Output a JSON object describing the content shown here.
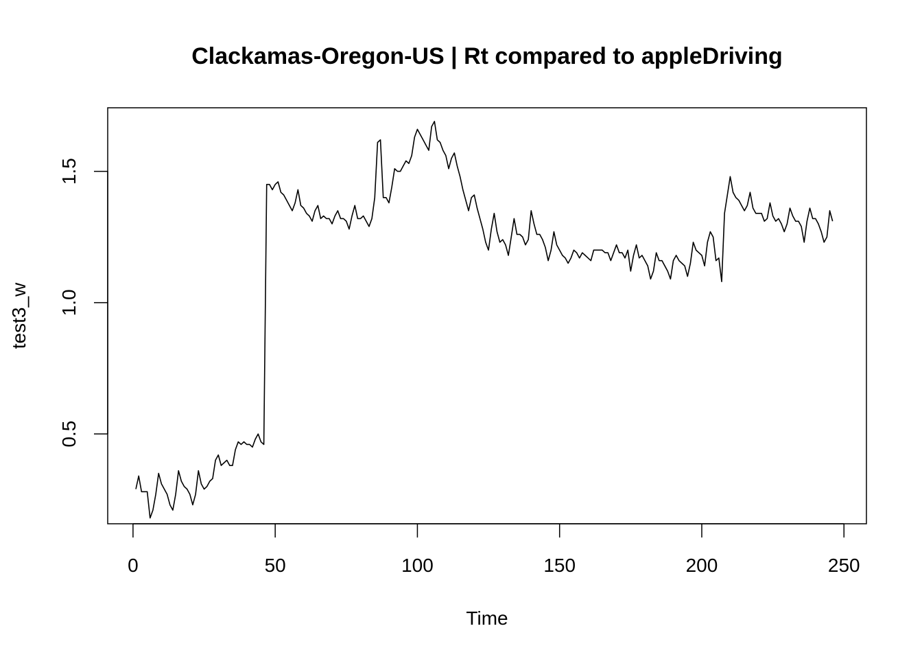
{
  "chart_data": {
    "type": "line",
    "title": "Clackamas-Oregon-US | Rt compared to appleDriving",
    "xlabel": "Time",
    "ylabel": "test3_w",
    "xlim": [
      -8.9,
      257.9
    ],
    "ylim": [
      0.158,
      1.742
    ],
    "x_ticks": [
      0,
      50,
      100,
      150,
      200,
      250
    ],
    "x_tick_labels": [
      "0",
      "50",
      "100",
      "150",
      "200",
      "250"
    ],
    "y_ticks": [
      0.5,
      1.0,
      1.5
    ],
    "y_tick_labels": [
      "0.5",
      "1.0",
      "1.5"
    ],
    "grid": false,
    "legend": "none",
    "colors": {
      "line": "#000000",
      "frame": "#000000",
      "background": "#ffffff"
    },
    "series": [
      {
        "x_start": 1,
        "x_step": 1,
        "values": [
          0.29,
          0.34,
          0.28,
          0.28,
          0.28,
          0.18,
          0.21,
          0.27,
          0.35,
          0.31,
          0.29,
          0.27,
          0.23,
          0.21,
          0.27,
          0.36,
          0.32,
          0.3,
          0.29,
          0.27,
          0.23,
          0.27,
          0.36,
          0.31,
          0.29,
          0.3,
          0.32,
          0.33,
          0.4,
          0.42,
          0.38,
          0.39,
          0.4,
          0.38,
          0.38,
          0.44,
          0.47,
          0.46,
          0.47,
          0.46,
          0.46,
          0.45,
          0.48,
          0.5,
          0.47,
          0.46,
          1.45,
          1.45,
          1.43,
          1.45,
          1.46,
          1.42,
          1.41,
          1.39,
          1.37,
          1.35,
          1.38,
          1.43,
          1.37,
          1.36,
          1.34,
          1.33,
          1.31,
          1.35,
          1.37,
          1.32,
          1.33,
          1.32,
          1.32,
          1.3,
          1.33,
          1.35,
          1.32,
          1.32,
          1.31,
          1.28,
          1.33,
          1.37,
          1.32,
          1.32,
          1.33,
          1.31,
          1.29,
          1.32,
          1.4,
          1.61,
          1.62,
          1.4,
          1.4,
          1.38,
          1.44,
          1.51,
          1.5,
          1.5,
          1.52,
          1.54,
          1.53,
          1.56,
          1.63,
          1.66,
          1.64,
          1.62,
          1.6,
          1.58,
          1.67,
          1.69,
          1.62,
          1.61,
          1.58,
          1.56,
          1.51,
          1.55,
          1.57,
          1.52,
          1.48,
          1.43,
          1.39,
          1.35,
          1.4,
          1.41,
          1.36,
          1.32,
          1.28,
          1.23,
          1.2,
          1.28,
          1.34,
          1.27,
          1.23,
          1.24,
          1.22,
          1.18,
          1.25,
          1.32,
          1.26,
          1.26,
          1.25,
          1.22,
          1.24,
          1.35,
          1.3,
          1.26,
          1.26,
          1.24,
          1.21,
          1.16,
          1.2,
          1.27,
          1.22,
          1.2,
          1.18,
          1.17,
          1.15,
          1.17,
          1.2,
          1.19,
          1.17,
          1.19,
          1.18,
          1.17,
          1.16,
          1.2,
          1.2,
          1.2,
          1.2,
          1.19,
          1.19,
          1.16,
          1.19,
          1.22,
          1.19,
          1.19,
          1.17,
          1.2,
          1.12,
          1.18,
          1.22,
          1.17,
          1.18,
          1.16,
          1.14,
          1.09,
          1.12,
          1.19,
          1.16,
          1.16,
          1.14,
          1.12,
          1.09,
          1.16,
          1.18,
          1.16,
          1.15,
          1.14,
          1.1,
          1.15,
          1.23,
          1.2,
          1.19,
          1.18,
          1.14,
          1.23,
          1.27,
          1.25,
          1.16,
          1.17,
          1.08,
          1.34,
          1.41,
          1.48,
          1.42,
          1.4,
          1.39,
          1.37,
          1.35,
          1.37,
          1.42,
          1.36,
          1.34,
          1.34,
          1.34,
          1.31,
          1.32,
          1.38,
          1.33,
          1.31,
          1.32,
          1.3,
          1.27,
          1.3,
          1.36,
          1.33,
          1.31,
          1.31,
          1.29,
          1.23,
          1.31,
          1.36,
          1.32,
          1.32,
          1.3,
          1.27,
          1.23,
          1.25,
          1.35,
          1.31
        ]
      }
    ]
  }
}
